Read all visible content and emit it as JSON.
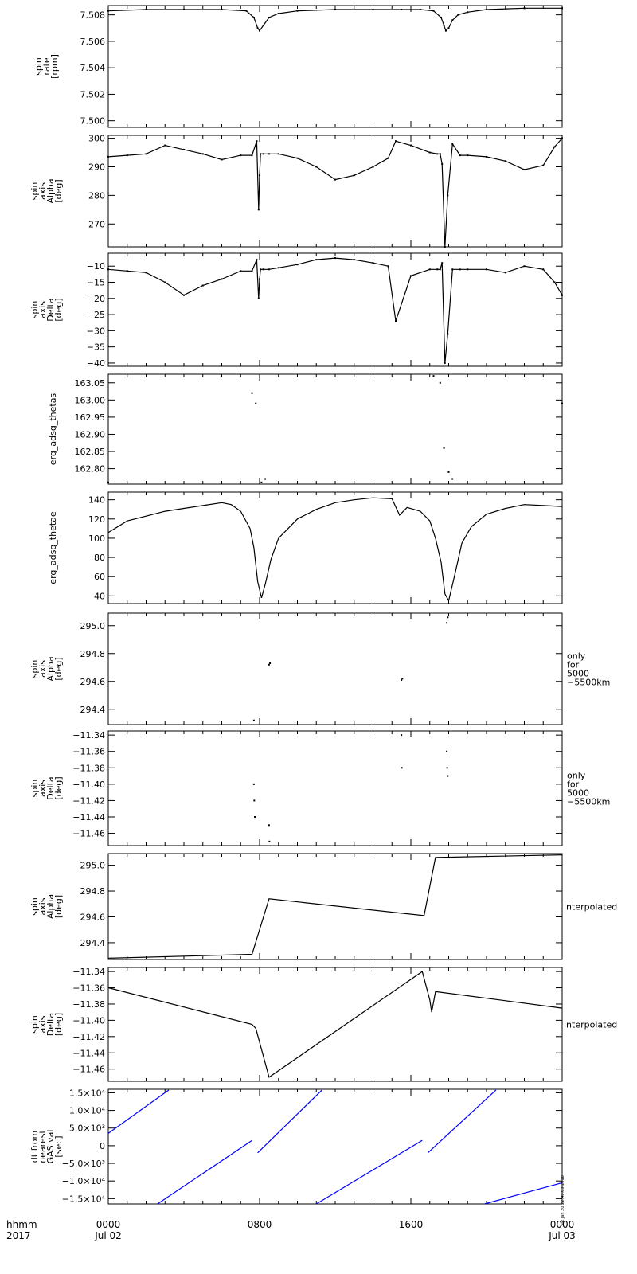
{
  "figure": {
    "x_axis": {
      "tick_labels": [
        "0000",
        "0800",
        "1600",
        "0000"
      ],
      "date_labels": [
        "Jul 02",
        "",
        "",
        "Jul 03"
      ],
      "corner_label_1": "hhmm",
      "corner_label_2": "2017"
    },
    "timestamp_text": "Sat Jan 20 22:46:03 2018"
  },
  "chart_data": [
    {
      "type": "scatter",
      "ylabel": [
        "spin",
        "rate",
        "[rpm]"
      ],
      "ylim": [
        7.4995,
        7.5087
      ],
      "yticks": [
        7.5,
        7.502,
        7.504,
        7.506,
        7.508
      ],
      "ytick_labels": [
        "7.500",
        "7.502",
        "7.504",
        "7.506",
        "7.508"
      ],
      "color": "#000000",
      "x_hours": [
        0,
        2,
        4,
        6,
        7.3,
        7.7,
        7.9,
        8.0,
        8.2,
        8.5,
        9,
        10,
        12,
        14,
        15.5,
        16.5,
        17.2,
        17.6,
        17.75,
        17.85,
        18.0,
        18.2,
        18.5,
        19,
        20,
        22,
        24
      ],
      "y": [
        7.5083,
        7.5084,
        7.5084,
        7.5084,
        7.5083,
        7.5078,
        7.507,
        7.5068,
        7.5072,
        7.5078,
        7.5081,
        7.5083,
        7.5084,
        7.5084,
        7.5084,
        7.5084,
        7.5083,
        7.5078,
        7.5072,
        7.5068,
        7.507,
        7.5076,
        7.508,
        7.5082,
        7.5084,
        7.5085,
        7.5085
      ]
    },
    {
      "type": "scatter",
      "ylabel": [
        "spin",
        "axis",
        "Alpha",
        "[deg]"
      ],
      "ylim": [
        262,
        301
      ],
      "yticks": [
        270,
        280,
        290,
        300
      ],
      "ytick_labels": [
        "270",
        "280",
        "290",
        "300"
      ],
      "color": "#000000",
      "x_hours": [
        0,
        1,
        2,
        3,
        4,
        5,
        6,
        7,
        7.6,
        7.85,
        7.95,
        8.0,
        8.05,
        8.2,
        8.5,
        9,
        10,
        11,
        12,
        13,
        14,
        14.8,
        15.2,
        16,
        17,
        17.4,
        17.55,
        17.65,
        17.8,
        17.95,
        18.2,
        18.6,
        19,
        20,
        21,
        22,
        23,
        23.6,
        24
      ],
      "y": [
        293.5,
        294,
        294.5,
        297.5,
        296,
        294.5,
        292.5,
        294,
        294,
        299,
        275,
        287,
        294.5,
        294.5,
        294.5,
        294.5,
        293,
        290,
        285.5,
        287,
        290,
        293,
        299,
        297.5,
        295,
        294.5,
        294.5,
        291,
        262,
        280,
        298,
        294,
        294,
        293.5,
        292,
        289,
        290.5,
        297,
        300
      ]
    },
    {
      "type": "scatter",
      "ylabel": [
        "spin",
        "axis",
        "Delta",
        "[deg]"
      ],
      "ylim": [
        -41,
        -6
      ],
      "yticks": [
        -40,
        -35,
        -30,
        -25,
        -20,
        -15,
        -10
      ],
      "ytick_labels": [
        "−40",
        "−35",
        "−30",
        "−25",
        "−20",
        "−15",
        "−10"
      ],
      "color": "#000000",
      "x_hours": [
        0,
        1,
        2,
        3,
        4,
        5,
        6,
        7,
        7.6,
        7.85,
        7.95,
        8.0,
        8.05,
        8.2,
        8.5,
        9,
        10,
        11,
        12,
        13,
        14,
        14.8,
        15.2,
        16,
        17,
        17.4,
        17.55,
        17.65,
        17.8,
        17.95,
        18.2,
        18.6,
        19,
        20,
        21,
        22,
        23,
        23.6,
        24
      ],
      "y": [
        -11,
        -11.5,
        -12,
        -15,
        -19,
        -16,
        -14,
        -11.5,
        -11.5,
        -8,
        -20,
        -14,
        -11,
        -11,
        -11,
        -10.5,
        -9.5,
        -8,
        -7.5,
        -8,
        -9,
        -10,
        -27,
        -13,
        -11,
        -11,
        -11,
        -9,
        -40,
        -31,
        -11,
        -11,
        -11,
        -11,
        -12,
        -10,
        -11,
        -15,
        -19
      ]
    },
    {
      "type": "scatter",
      "ylabel": [
        "erg_adsg_thetas"
      ],
      "ylim": [
        162.755,
        163.075
      ],
      "yticks": [
        162.8,
        162.85,
        162.9,
        162.95,
        163.0,
        163.05
      ],
      "ytick_labels": [
        "162.80",
        "162.85",
        "162.90",
        "162.95",
        "163.00",
        "163.05"
      ],
      "color": "#000000",
      "x_hours": [
        0,
        7.6,
        7.8,
        8.1,
        8.3,
        17.2,
        17.55,
        17.75,
        18.0,
        18.2,
        24
      ],
      "y": [
        162.76,
        163.02,
        162.99,
        162.76,
        162.77,
        163.07,
        163.05,
        162.86,
        162.79,
        162.77,
        162.99
      ]
    },
    {
      "type": "line",
      "ylabel": [
        "erg_adsg_thetae"
      ],
      "ylim": [
        32,
        148
      ],
      "yticks": [
        40,
        60,
        80,
        100,
        120,
        140
      ],
      "ytick_labels": [
        "40",
        "60",
        "80",
        "100",
        "120",
        "140"
      ],
      "color": "#000000",
      "x_hours": [
        0,
        1,
        2,
        3,
        4,
        5,
        6,
        6.5,
        7,
        7.5,
        7.7,
        7.9,
        8.1,
        8.3,
        8.6,
        9,
        10,
        11,
        12,
        13,
        14,
        15,
        15.4,
        15.8,
        16.5,
        17,
        17.3,
        17.6,
        17.8,
        18.0,
        18.3,
        18.7,
        19.2,
        20,
        21,
        22,
        23,
        24
      ],
      "y": [
        106,
        118,
        123,
        128,
        131,
        134,
        137,
        135,
        128,
        110,
        90,
        55,
        38,
        52,
        78,
        100,
        120,
        130,
        137,
        140,
        142,
        141,
        124,
        132,
        128,
        118,
        100,
        75,
        42,
        35,
        60,
        95,
        112,
        125,
        131,
        135,
        134,
        133
      ]
    },
    {
      "type": "scatter",
      "ylabel": [
        "spin",
        "axis",
        "Alpha",
        "[deg]"
      ],
      "annotation": [
        "only",
        "for",
        "5000",
        "−5500km"
      ],
      "ylim": [
        294.29,
        295.09
      ],
      "yticks": [
        294.4,
        294.6,
        294.8,
        295.0
      ],
      "ytick_labels": [
        "294.4",
        "294.6",
        "294.8",
        "295.0"
      ],
      "color": "#000000",
      "x_hours": [
        7.7,
        8.5,
        8.55,
        15.5,
        15.55,
        17.9,
        17.95
      ],
      "y": [
        294.32,
        294.72,
        294.73,
        294.61,
        294.62,
        295.02,
        295.06
      ]
    },
    {
      "type": "scatter",
      "ylabel": [
        "spin",
        "axis",
        "Delta",
        "[deg]"
      ],
      "annotation": [
        "only",
        "for",
        "5000",
        "−5500km"
      ],
      "ylim": [
        -11.475,
        -11.335
      ],
      "yticks": [
        -11.46,
        -11.44,
        -11.42,
        -11.4,
        -11.38,
        -11.36,
        -11.34
      ],
      "ytick_labels": [
        "−11.46",
        "−11.44",
        "−11.42",
        "−11.40",
        "−11.38",
        "−11.36",
        "−11.34"
      ],
      "color": "#000000",
      "x_hours": [
        7.7,
        7.72,
        7.75,
        8.5,
        8.52,
        15.5,
        15.52,
        17.9,
        17.92,
        17.95
      ],
      "y": [
        -11.4,
        -11.42,
        -11.44,
        -11.45,
        -11.47,
        -11.34,
        -11.38,
        -11.36,
        -11.38,
        -11.39
      ]
    },
    {
      "type": "line",
      "ylabel": [
        "spin",
        "axis",
        "Alpha",
        "[deg]"
      ],
      "annotation": [
        "interpolated"
      ],
      "ylim": [
        294.27,
        295.09
      ],
      "yticks": [
        294.4,
        294.6,
        294.8,
        295.0
      ],
      "ytick_labels": [
        "294.4",
        "294.6",
        "294.8",
        "295.0"
      ],
      "color": "#000000",
      "x_hours": [
        0,
        7.6,
        8.5,
        16.7,
        17.3,
        24
      ],
      "y": [
        294.28,
        294.31,
        294.74,
        294.61,
        295.06,
        295.08
      ]
    },
    {
      "type": "line",
      "ylabel": [
        "spin",
        "axis",
        "Delta",
        "[deg]"
      ],
      "annotation": [
        "interpolated"
      ],
      "ylim": [
        -11.475,
        -11.335
      ],
      "yticks": [
        -11.46,
        -11.44,
        -11.42,
        -11.4,
        -11.38,
        -11.36,
        -11.34
      ],
      "ytick_labels": [
        "−11.46",
        "−11.44",
        "−11.42",
        "−11.40",
        "−11.38",
        "−11.36",
        "−11.34"
      ],
      "color": "#000000",
      "x_hours": [
        0,
        7.6,
        7.8,
        8.5,
        16.6,
        17.0,
        17.1,
        17.3,
        17.4,
        24
      ],
      "y": [
        -11.36,
        -11.405,
        -11.41,
        -11.47,
        -11.34,
        -11.375,
        -11.39,
        -11.365,
        -11.365,
        -11.385
      ]
    },
    {
      "type": "line",
      "ylabel": [
        "dt from",
        "nearest",
        "GAS val",
        "[sec]"
      ],
      "ylim": [
        -16500,
        16000
      ],
      "yticks": [
        -15000,
        -10000,
        -5000,
        0,
        5000,
        10000,
        15000
      ],
      "ytick_labels": [
        "−1.5×10⁴",
        "−1.0×10⁴",
        "−5.0×10³",
        "0",
        "5.0×10³",
        "1.0×10⁴",
        "1.5×10⁴"
      ],
      "color": "#0000ff",
      "segments": [
        {
          "x_hours": [
            0,
            3.2
          ],
          "y": [
            3500,
            15800
          ]
        },
        {
          "x_hours": [
            2.6,
            7.6
          ],
          "y": [
            -16500,
            1500
          ]
        },
        {
          "x_hours": [
            7.9,
            11.3
          ],
          "y": [
            -2000,
            15800
          ]
        },
        {
          "x_hours": [
            11.0,
            16.6
          ],
          "y": [
            -16500,
            1500
          ]
        },
        {
          "x_hours": [
            16.9,
            20.5
          ],
          "y": [
            -2000,
            15800
          ]
        },
        {
          "x_hours": [
            19.9,
            24
          ],
          "y": [
            -16500,
            -10500
          ]
        }
      ]
    }
  ]
}
